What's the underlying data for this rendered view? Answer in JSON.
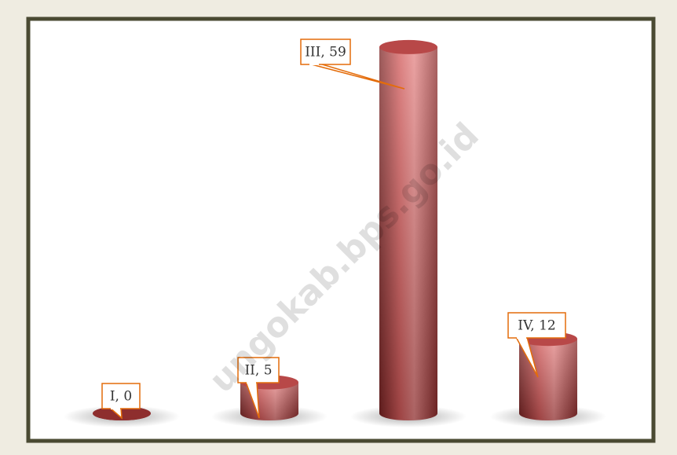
{
  "chart_data": {
    "type": "bar",
    "values": [
      0,
      5,
      59,
      12
    ],
    "value_labels": [
      "I, 0",
      "II, 5",
      "III, 59",
      "IV, 12"
    ],
    "color": "#c0504d",
    "watermark": "ungokab.bps.go.id"
  }
}
